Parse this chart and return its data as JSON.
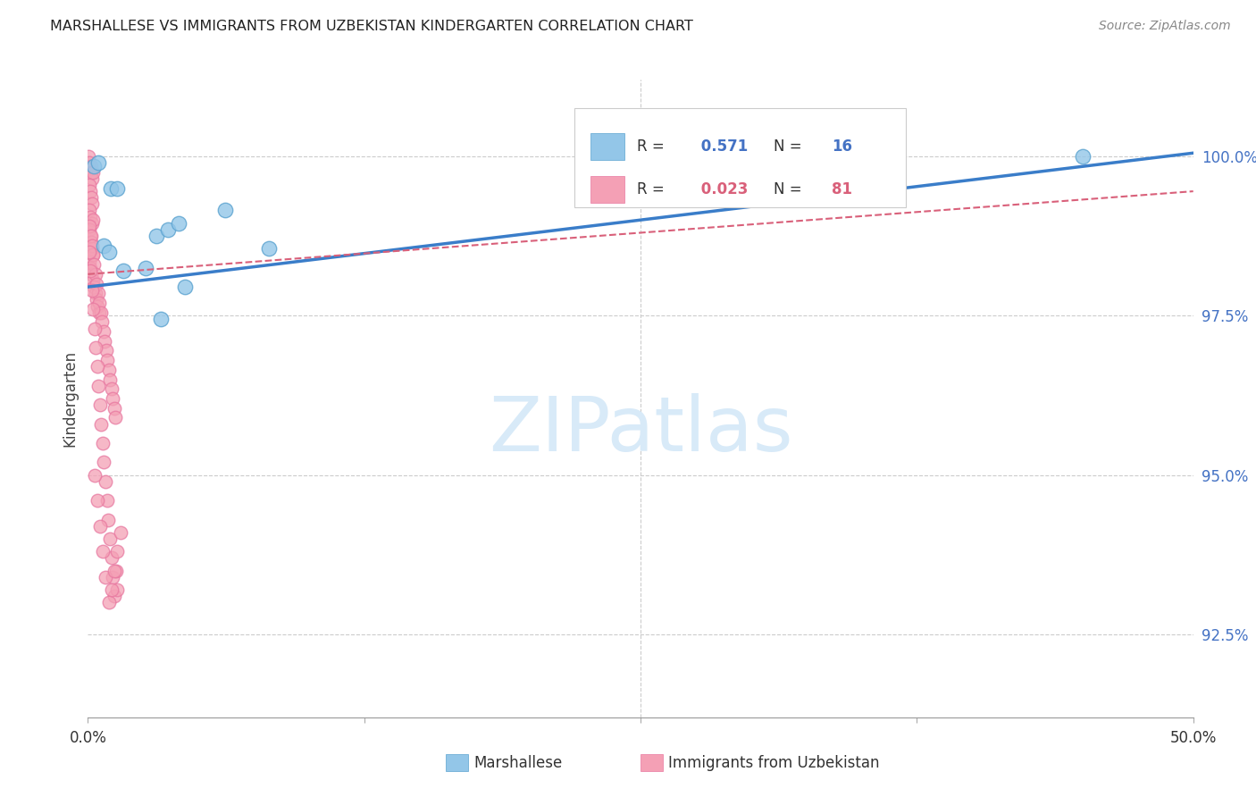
{
  "title": "MARSHALLESE VS IMMIGRANTS FROM UZBEKISTAN KINDERGARTEN CORRELATION CHART",
  "source": "Source: ZipAtlas.com",
  "ylabel": "Kindergarten",
  "ytick_labels": [
    "92.5%",
    "95.0%",
    "97.5%",
    "100.0%"
  ],
  "ytick_values": [
    92.5,
    95.0,
    97.5,
    100.0
  ],
  "xmin": 0.0,
  "xmax": 50.0,
  "ymin": 91.2,
  "ymax": 101.2,
  "legend_blue_R": "0.571",
  "legend_blue_N": "16",
  "legend_pink_R": "0.023",
  "legend_pink_N": "81",
  "blue_color": "#93c6e8",
  "pink_color": "#f4a0b5",
  "blue_edge_color": "#5ba3d0",
  "pink_edge_color": "#e878a0",
  "blue_line_color": "#3a7dc9",
  "pink_line_color": "#d9607a",
  "label_color": "#4472C4",
  "watermark_color": "#d8eaf8",
  "blue_dots_x": [
    0.25,
    0.45,
    1.05,
    1.3,
    0.7,
    0.95,
    1.6,
    2.6,
    3.1,
    3.6,
    4.1,
    4.4,
    6.2,
    8.2,
    3.3,
    45.0
  ],
  "blue_dots_y": [
    99.85,
    99.9,
    99.5,
    99.5,
    98.6,
    98.5,
    98.2,
    98.25,
    98.75,
    98.85,
    98.95,
    97.95,
    99.15,
    98.55,
    97.45,
    100.0
  ],
  "pink_dots_x": [
    0.04,
    0.07,
    0.1,
    0.13,
    0.16,
    0.19,
    0.22,
    0.05,
    0.09,
    0.14,
    0.18,
    0.08,
    0.12,
    0.17,
    0.21,
    0.06,
    0.11,
    0.15,
    0.2,
    0.24,
    0.06,
    0.11,
    0.16,
    0.22,
    0.27,
    0.33,
    0.38,
    0.44,
    0.5,
    0.08,
    0.13,
    0.18,
    0.23,
    0.28,
    0.34,
    0.4,
    0.46,
    0.52,
    0.58,
    0.64,
    0.7,
    0.76,
    0.82,
    0.88,
    0.94,
    1.0,
    1.06,
    1.12,
    1.18,
    1.24,
    0.07,
    0.12,
    0.17,
    0.23,
    0.29,
    0.35,
    0.41,
    0.47,
    0.53,
    0.6,
    0.67,
    0.73,
    0.8,
    0.87,
    0.93,
    1.0,
    1.07,
    1.13,
    1.2,
    1.27,
    1.33,
    0.3,
    0.42,
    0.55,
    0.68,
    0.81,
    0.94,
    1.07,
    1.2,
    1.33,
    1.46
  ],
  "pink_dots_y": [
    100.0,
    99.9,
    99.8,
    99.85,
    99.75,
    99.65,
    99.75,
    99.55,
    99.45,
    99.35,
    99.25,
    99.15,
    99.05,
    98.95,
    99.0,
    98.85,
    98.75,
    98.65,
    98.55,
    98.45,
    98.35,
    98.25,
    98.15,
    98.05,
    97.95,
    97.85,
    97.75,
    97.65,
    97.55,
    98.9,
    98.75,
    98.6,
    98.45,
    98.3,
    98.15,
    98.0,
    97.85,
    97.7,
    97.55,
    97.4,
    97.25,
    97.1,
    96.95,
    96.8,
    96.65,
    96.5,
    96.35,
    96.2,
    96.05,
    95.9,
    98.5,
    98.2,
    97.9,
    97.6,
    97.3,
    97.0,
    96.7,
    96.4,
    96.1,
    95.8,
    95.5,
    95.2,
    94.9,
    94.6,
    94.3,
    94.0,
    93.7,
    93.4,
    93.1,
    93.5,
    93.2,
    95.0,
    94.6,
    94.2,
    93.8,
    93.4,
    93.0,
    93.2,
    93.5,
    93.8,
    94.1
  ],
  "blue_trend": [
    0.0,
    97.95,
    50.0,
    100.05
  ],
  "pink_trend": [
    0.0,
    98.15,
    50.0,
    99.45
  ]
}
